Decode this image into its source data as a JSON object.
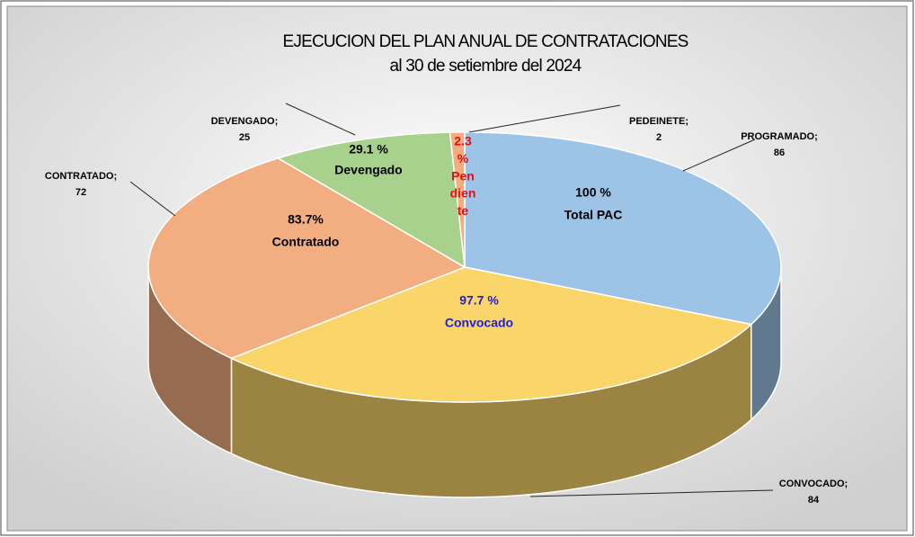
{
  "chart_data": {
    "type": "pie3d",
    "title": [
      "EJECUCION DEL PLAN ANUAL DE CONTRATACIONES",
      "al 30 de setiembre del 2024"
    ],
    "categories": [
      "PROGRAMADO;",
      "CONVOCADO;",
      "CONTRATADO;",
      "DEVENGADO;",
      "PEDEINETE;"
    ],
    "values": [
      86,
      84,
      72,
      25,
      2
    ],
    "colors": [
      "#9dc3e6",
      "#fad569",
      "#f2ad80",
      "#a9d18e",
      "#f2ad80"
    ],
    "slice_labels": [
      [
        "100 %",
        "Total PAC"
      ],
      [
        "97.7 %",
        "Convocado"
      ],
      [
        "83.7%",
        "Contratado"
      ],
      [
        "29.1 %",
        "Devengado"
      ],
      [
        "2.3",
        "%",
        "Pen",
        "dien",
        "te"
      ]
    ],
    "slice_label_colors": [
      "#000000",
      "#1f1fd0",
      "#000000",
      "#000000",
      "#e01010"
    ]
  }
}
